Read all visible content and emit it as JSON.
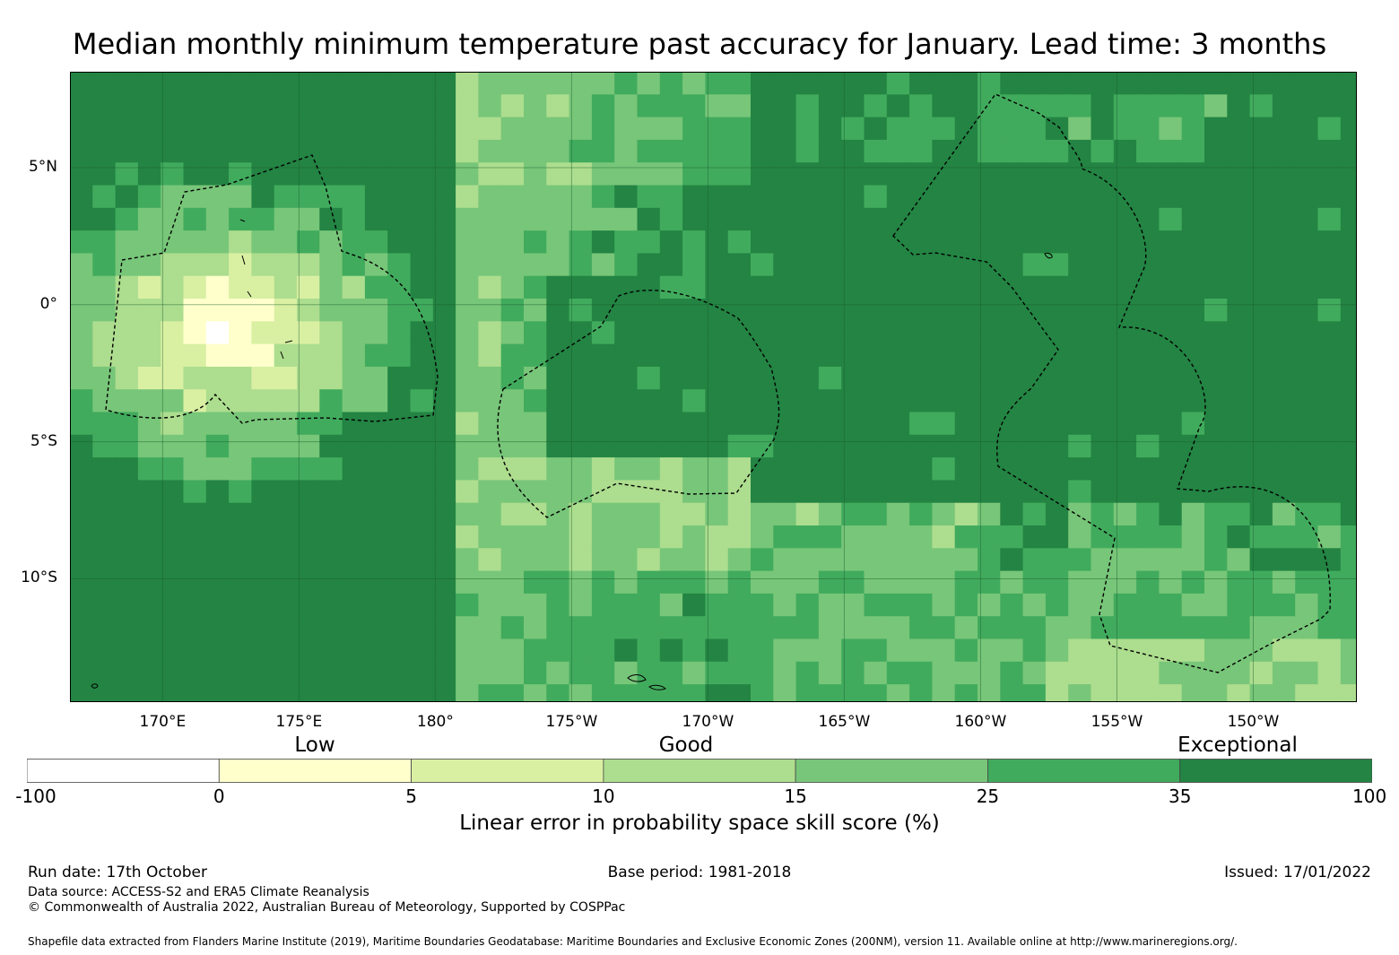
{
  "title": "Median monthly minimum temperature past accuracy for January. Lead time: 3 months",
  "map": {
    "lat_labels": [
      "5°N",
      "0°",
      "5°S",
      "10°S"
    ],
    "lon_labels": [
      "170°E",
      "175°E",
      "180°",
      "175°W",
      "170°W",
      "165°W",
      "160°W",
      "155°W",
      "150°W"
    ],
    "lon_range_deg_east": [
      166.6,
      213.8
    ],
    "lat_range": [
      -14.5,
      8.5
    ]
  },
  "legend": {
    "categories": [
      "Low",
      "Good",
      "Exceptional"
    ],
    "bounds": [
      "-100",
      "0",
      "5",
      "10",
      "15",
      "25",
      "35",
      "100"
    ],
    "colors": [
      "#ffffff",
      "#ffffcc",
      "#d9f0a3",
      "#addd8e",
      "#78c679",
      "#41ab5d",
      "#238443"
    ],
    "title": "Linear error in probability space skill score (%)"
  },
  "footer": {
    "run_date": "Run date: 17th October",
    "base_period": "Base period: 1981-2018",
    "issued": "Issued: 17/01/2022",
    "data_source": "Data source: ACCESS-S2 and ERA5 Climate Reanalysis",
    "copyright": "© Commonwealth of Australia 2022, Australian Bureau of Meteorology, Supported by COSPPac",
    "shapefile": "Shapefile data extracted from Flanders Marine Institute (2019), Maritime Boundaries Geodatabase: Maritime Boundaries and Exclusive Economic Zones (200NM), version 11. Available online at http://www.marineregions.org/."
  }
}
